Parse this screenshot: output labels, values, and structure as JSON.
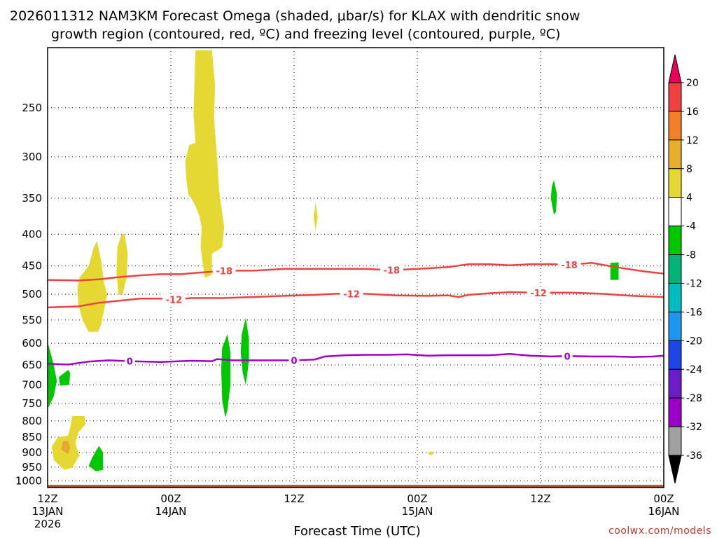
{
  "chart_data": {
    "type": "contour",
    "title_line1": "2026011312 NAM3KM Forecast Omega (shaded, μbar/s) for KLAX with dendritic snow",
    "title_line2": "growth region (contoured, red, ºC) and freezing level (contoured, purple, ºC)",
    "xlabel": "Forecast Time (UTC)",
    "credit": "coolwx.com/models",
    "x_ticks": [
      {
        "hour": 0,
        "line1": "12Z",
        "line2": "13JAN",
        "line3": "2026"
      },
      {
        "hour": 12,
        "line1": "00Z",
        "line2": "14JAN",
        "line3": ""
      },
      {
        "hour": 24,
        "line1": "12Z",
        "line2": "",
        "line3": ""
      },
      {
        "hour": 36,
        "line1": "00Z",
        "line2": "15JAN",
        "line3": ""
      },
      {
        "hour": 48,
        "line1": "12Z",
        "line2": "",
        "line3": ""
      },
      {
        "hour": 60,
        "line1": "00Z",
        "line2": "16JAN",
        "line3": ""
      }
    ],
    "x_range_hours": [
      0,
      60
    ],
    "y_ticks": [
      250,
      300,
      350,
      400,
      450,
      500,
      550,
      600,
      650,
      700,
      750,
      800,
      850,
      900,
      950,
      1000
    ],
    "y_range_hPa": [
      200,
      1025
    ],
    "y_scale": "log-pressure",
    "grid": true,
    "colorbar": {
      "labels": [
        "20",
        "16",
        "12",
        "8",
        "4",
        "-4",
        "-8",
        "-12",
        "-16",
        "-20",
        "-24",
        "-28",
        "-32",
        "-36"
      ],
      "colors": [
        "#e8005a",
        "#f04141",
        "#f0802a",
        "#e6b02e",
        "#e6d832",
        "#ffffff",
        "#00c800",
        "#00b478",
        "#00bcc0",
        "#1e96f0",
        "#1e46e6",
        "#6a1ec8",
        "#9a00c8",
        "#a0a0a0",
        "#000000"
      ]
    },
    "contours": [
      {
        "name": "-18",
        "color": "#f04141",
        "labels": [
          {
            "hour": 17.2,
            "text": "-18"
          },
          {
            "hour": 33.5,
            "text": "-18"
          },
          {
            "hour": 50.8,
            "text": "-18"
          }
        ],
        "points": [
          [
            0,
            474
          ],
          [
            3,
            475
          ],
          [
            5,
            473
          ],
          [
            7,
            469
          ],
          [
            9,
            466
          ],
          [
            11,
            464
          ],
          [
            13,
            464
          ],
          [
            15,
            461
          ],
          [
            17.5,
            458
          ],
          [
            20,
            458
          ],
          [
            23,
            455
          ],
          [
            26,
            455
          ],
          [
            29,
            455
          ],
          [
            31,
            455
          ],
          [
            33.5,
            457
          ],
          [
            36,
            455
          ],
          [
            39,
            452
          ],
          [
            41,
            447
          ],
          [
            43,
            447
          ],
          [
            45,
            449
          ],
          [
            47,
            447
          ],
          [
            49,
            447
          ],
          [
            51,
            448
          ],
          [
            53,
            445
          ],
          [
            55,
            451
          ],
          [
            58,
            459
          ],
          [
            60,
            463
          ]
        ]
      },
      {
        "name": "-12",
        "color": "#f04141",
        "labels": [
          {
            "hour": 12.3,
            "text": "-12"
          },
          {
            "hour": 29.6,
            "text": "-12"
          },
          {
            "hour": 47.8,
            "text": "-12"
          }
        ],
        "points": [
          [
            0,
            525
          ],
          [
            3,
            523
          ],
          [
            5,
            516
          ],
          [
            7,
            512
          ],
          [
            9,
            508
          ],
          [
            11,
            508
          ],
          [
            12.3,
            510
          ],
          [
            14,
            507
          ],
          [
            17,
            507
          ],
          [
            20,
            505
          ],
          [
            23,
            503
          ],
          [
            26,
            501
          ],
          [
            28,
            499
          ],
          [
            29.6,
            499
          ],
          [
            31,
            499
          ],
          [
            34,
            502
          ],
          [
            37,
            503
          ],
          [
            39,
            502
          ],
          [
            40,
            505
          ],
          [
            41,
            501
          ],
          [
            43,
            498
          ],
          [
            45,
            496
          ],
          [
            48,
            497
          ],
          [
            51,
            497
          ],
          [
            54,
            499
          ],
          [
            57,
            503
          ],
          [
            60,
            505
          ]
        ]
      },
      {
        "name": "0",
        "color": "#a000c8",
        "labels": [
          {
            "hour": 8,
            "text": "0"
          },
          {
            "hour": 24,
            "text": "0"
          },
          {
            "hour": 50.6,
            "text": "0"
          }
        ],
        "points": [
          [
            0,
            647
          ],
          [
            2,
            649
          ],
          [
            4,
            642
          ],
          [
            6,
            639
          ],
          [
            8,
            641
          ],
          [
            11,
            643
          ],
          [
            14,
            640
          ],
          [
            16,
            641
          ],
          [
            16.5,
            636
          ],
          [
            18,
            639
          ],
          [
            21,
            639
          ],
          [
            24,
            639
          ],
          [
            26,
            637
          ],
          [
            27,
            630
          ],
          [
            29,
            627
          ],
          [
            31,
            626
          ],
          [
            33,
            626
          ],
          [
            35,
            625
          ],
          [
            37,
            628
          ],
          [
            39,
            627
          ],
          [
            41,
            627
          ],
          [
            43,
            627
          ],
          [
            45,
            624
          ],
          [
            47,
            628
          ],
          [
            49,
            630
          ],
          [
            50.6,
            629
          ],
          [
            53,
            630
          ],
          [
            55,
            630
          ],
          [
            57,
            631
          ],
          [
            59,
            630
          ],
          [
            60,
            628
          ]
        ]
      }
    ],
    "shaded_regions": [
      {
        "value_band": "4 to 8",
        "color": "#e6d832",
        "points": [
          [
            14.4,
            202
          ],
          [
            16.0,
            202
          ],
          [
            16.3,
            230
          ],
          [
            16.2,
            260
          ],
          [
            16.5,
            300
          ],
          [
            16.7,
            340
          ],
          [
            17.2,
            390
          ],
          [
            17.0,
            420
          ],
          [
            16.0,
            430
          ],
          [
            16.0,
            465
          ],
          [
            15.3,
            470
          ],
          [
            14.9,
            420
          ],
          [
            15.0,
            390
          ],
          [
            14.8,
            375
          ],
          [
            14.4,
            360
          ],
          [
            14.0,
            350
          ],
          [
            13.7,
            345
          ],
          [
            13.5,
            325
          ],
          [
            13.4,
            305
          ],
          [
            13.8,
            287
          ],
          [
            14.4,
            285
          ],
          [
            14.2,
            255
          ]
        ]
      },
      {
        "value_band": "4 to 8",
        "color": "#e6d832",
        "points": [
          [
            4.8,
            410
          ],
          [
            5.2,
            440
          ],
          [
            5.5,
            480
          ],
          [
            5.8,
            500
          ],
          [
            5.5,
            530
          ],
          [
            5.2,
            560
          ],
          [
            4.9,
            575
          ],
          [
            4.0,
            575
          ],
          [
            3.4,
            550
          ],
          [
            3.0,
            520
          ],
          [
            2.9,
            490
          ],
          [
            3.1,
            470
          ],
          [
            4.0,
            450
          ],
          [
            4.5,
            420
          ]
        ]
      },
      {
        "value_band": "4 to 8",
        "color": "#e6d832",
        "points": [
          [
            7.5,
            400
          ],
          [
            7.8,
            430
          ],
          [
            7.7,
            470
          ],
          [
            7.3,
            500
          ],
          [
            6.9,
            500
          ],
          [
            6.7,
            460
          ],
          [
            6.8,
            420
          ],
          [
            7.2,
            400
          ]
        ]
      },
      {
        "value_band": "4 to 8",
        "color": "#e6d832",
        "points": [
          [
            26.1,
            355
          ],
          [
            26.3,
            375
          ],
          [
            26.1,
            395
          ],
          [
            25.9,
            375
          ]
        ]
      },
      {
        "value_band": "4 to 8",
        "color": "#e6d832",
        "points": [
          [
            2.4,
            786
          ],
          [
            3.6,
            786
          ],
          [
            3.7,
            810
          ],
          [
            3.0,
            835
          ],
          [
            2.7,
            870
          ],
          [
            3.1,
            910
          ],
          [
            2.4,
            952
          ],
          [
            1.6,
            960
          ],
          [
            0.6,
            925
          ],
          [
            0.4,
            880
          ],
          [
            1.0,
            850
          ],
          [
            2.0,
            845
          ],
          [
            2.2,
            820
          ]
        ]
      },
      {
        "value_band": "4 to 8",
        "color": "#e6d832",
        "points": [
          [
            37.3,
            895
          ],
          [
            37.6,
            903
          ],
          [
            37.3,
            910
          ],
          [
            37.0,
            903
          ]
        ]
      },
      {
        "value_band": "8 to 12",
        "color": "#e6a830",
        "points": [
          [
            1.5,
            862
          ],
          [
            2.0,
            862
          ],
          [
            2.2,
            885
          ],
          [
            2.0,
            905
          ],
          [
            1.3,
            890
          ]
        ]
      },
      {
        "value_band": "-4 to -8",
        "color": "#00c800",
        "points": [
          [
            0.1,
            605
          ],
          [
            0.6,
            650
          ],
          [
            0.9,
            690
          ],
          [
            0.6,
            730
          ],
          [
            0.1,
            760
          ],
          [
            0,
            760
          ],
          [
            0,
            600
          ]
        ]
      },
      {
        "value_band": "-4 to -8",
        "color": "#00c800",
        "points": [
          [
            2.0,
            662
          ],
          [
            2.2,
            670
          ],
          [
            2.1,
            700
          ],
          [
            1.2,
            702
          ],
          [
            1.1,
            680
          ]
        ]
      },
      {
        "value_band": "-4 to -8",
        "color": "#00c800",
        "points": [
          [
            5.0,
            878
          ],
          [
            5.4,
            900
          ],
          [
            5.4,
            960
          ],
          [
            4.7,
            965
          ],
          [
            4.0,
            945
          ],
          [
            4.3,
            920
          ],
          [
            4.7,
            895
          ]
        ]
      },
      {
        "value_band": "-4 to -8",
        "color": "#00c800",
        "points": [
          [
            17.5,
            580
          ],
          [
            17.8,
            620
          ],
          [
            17.8,
            700
          ],
          [
            17.5,
            770
          ],
          [
            17.3,
            790
          ],
          [
            17.0,
            740
          ],
          [
            16.9,
            660
          ],
          [
            17.0,
            610
          ]
        ]
      },
      {
        "value_band": "-4 to -8",
        "color": "#00c800",
        "points": [
          [
            19.3,
            545
          ],
          [
            19.6,
            590
          ],
          [
            19.6,
            640
          ],
          [
            19.3,
            700
          ],
          [
            19.0,
            670
          ],
          [
            18.8,
            620
          ],
          [
            18.9,
            580
          ]
        ]
      },
      {
        "value_band": "-4 to -8",
        "color": "#00c800",
        "points": [
          [
            49.3,
            327
          ],
          [
            49.6,
            345
          ],
          [
            49.5,
            368
          ],
          [
            49.3,
            372
          ],
          [
            49.0,
            350
          ],
          [
            49.1,
            335
          ]
        ]
      },
      {
        "value_band": "-4 to -8",
        "color": "#00c800",
        "points": [
          [
            54.8,
            445
          ],
          [
            55.6,
            444
          ],
          [
            55.6,
            474
          ],
          [
            54.8,
            474
          ]
        ]
      }
    ],
    "terrain": {
      "color": "#a0522d",
      "top_hPa": 1015
    }
  }
}
